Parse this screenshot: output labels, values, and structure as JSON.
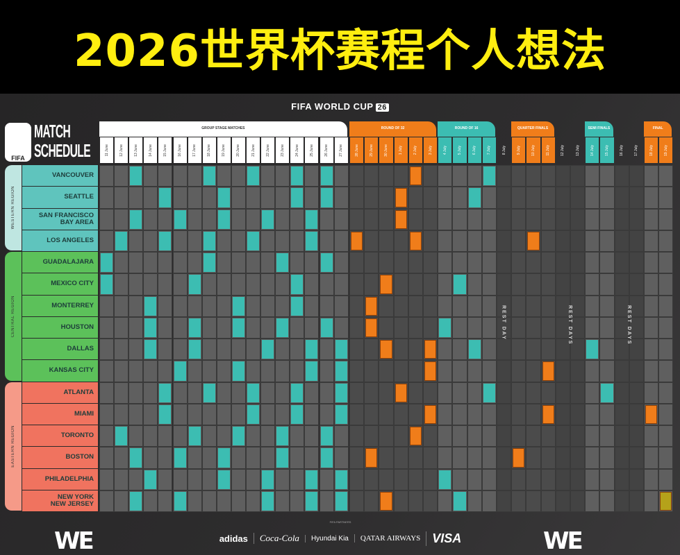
{
  "title": "2026世界杯赛程个人想法",
  "brand": {
    "text": "FIFA WORLD CUP",
    "badge": "26"
  },
  "logo": {
    "number": "26",
    "fifa": "FIFA",
    "line1": "MATCH",
    "line2": "SCHEDULE"
  },
  "colors": {
    "teal": "#3cbdb2",
    "orange": "#f07d1a",
    "final": "#b5a21a",
    "western": "#5fc4bd",
    "western_band": "#bfe6e1",
    "central": "#5cc15a",
    "eastern": "#f0735f",
    "eastern_band": "#f59a88",
    "group_header": "#ffffff"
  },
  "stages": [
    {
      "label": "GROUP STAGE MATCHES",
      "color": "group_header",
      "count": 17
    },
    {
      "label": "ROUND OF 32",
      "color": "orange",
      "count": 6
    },
    {
      "label": "ROUND OF 16",
      "color": "teal",
      "count": 4
    },
    {
      "label": "",
      "color": "rest",
      "count": 1
    },
    {
      "label": "QUARTER FINALS",
      "color": "orange",
      "count": 3
    },
    {
      "label": "",
      "color": "rest",
      "count": 2
    },
    {
      "label": "SEMI FINALS",
      "color": "teal",
      "count": 2
    },
    {
      "label": "",
      "color": "rest",
      "count": 2
    },
    {
      "label": "FINAL",
      "color": "orange",
      "count": 2
    }
  ],
  "dates": [
    "11 June",
    "12 June",
    "13 June",
    "14 June",
    "15 June",
    "16 June",
    "17 June",
    "18 June",
    "19 June",
    "20 June",
    "21 June",
    "22 June",
    "23 June",
    "24 June",
    "25 June",
    "26 June",
    "27 June",
    "28 June",
    "29 June",
    "30 June",
    "1 July",
    "2 July",
    "3 July",
    "4 July",
    "5 July",
    "6 July",
    "7 July",
    "8 July",
    "9 July",
    "10 July",
    "11 July",
    "12 July",
    "13 July",
    "14 July",
    "15 July",
    "16 July",
    "17 July",
    "18 July",
    "19 July"
  ],
  "rest_labels": [
    {
      "label": "REST DAY",
      "col": 27
    },
    {
      "label": "REST DAYS",
      "col": 31.5
    },
    {
      "label": "REST DAYS",
      "col": 35.5
    }
  ],
  "regions": [
    {
      "label": "WESTERN REGION",
      "color": "western",
      "band": "western_band",
      "rows": 4
    },
    {
      "label": "CENTRAL REGION",
      "color": "central",
      "band": "central",
      "rows": 6
    },
    {
      "label": "EASTERN REGION",
      "color": "eastern",
      "band": "eastern_band",
      "rows": 6
    }
  ],
  "cities": [
    {
      "name": "VANCOUVER",
      "matches": [
        2,
        7,
        10,
        13,
        15,
        21,
        26
      ]
    },
    {
      "name": "SEATTLE",
      "matches": [
        4,
        8,
        13,
        15,
        20,
        25
      ]
    },
    {
      "name": "SAN FRANCISCO\nBAY AREA",
      "matches": [
        2,
        5,
        8,
        11,
        14,
        20
      ]
    },
    {
      "name": "LOS ANGELES",
      "matches": [
        1,
        4,
        7,
        10,
        14,
        17,
        21,
        29
      ]
    },
    {
      "name": "GUADALAJARA",
      "matches": [
        0,
        7,
        12,
        15
      ]
    },
    {
      "name": "MEXICO CITY",
      "matches": [
        0,
        6,
        13,
        19,
        24
      ]
    },
    {
      "name": "MONTERREY",
      "matches": [
        3,
        9,
        13,
        18
      ]
    },
    {
      "name": "HOUSTON",
      "matches": [
        3,
        6,
        9,
        12,
        15,
        18,
        23
      ]
    },
    {
      "name": "DALLAS",
      "matches": [
        3,
        6,
        11,
        14,
        16,
        19,
        22,
        25,
        33
      ]
    },
    {
      "name": "KANSAS CITY",
      "matches": [
        5,
        9,
        14,
        16,
        22,
        30
      ]
    },
    {
      "name": "ATLANTA",
      "matches": [
        4,
        7,
        10,
        13,
        16,
        20,
        26,
        34
      ]
    },
    {
      "name": "MIAMI",
      "matches": [
        4,
        10,
        13,
        16,
        22,
        30,
        37
      ]
    },
    {
      "name": "TORONTO",
      "matches": [
        1,
        6,
        9,
        12,
        15,
        21
      ]
    },
    {
      "name": "BOSTON",
      "matches": [
        2,
        5,
        8,
        12,
        15,
        18,
        28
      ]
    },
    {
      "name": "PHILADELPHIA",
      "matches": [
        3,
        8,
        11,
        14,
        16,
        23
      ]
    },
    {
      "name": "NEW YORK\nNEW JERSEY",
      "matches": [
        2,
        5,
        11,
        14,
        16,
        19,
        24,
        38
      ]
    }
  ],
  "footer": {
    "left_logo": "WE ARE 26",
    "right_logo": "WE ARE 26",
    "sponsors_caption": "FIFA PARTNERS",
    "sponsors": [
      "adidas",
      "Coca-Cola",
      "Hyundai Kia",
      "QATAR AIRWAYS",
      "VISA"
    ]
  }
}
